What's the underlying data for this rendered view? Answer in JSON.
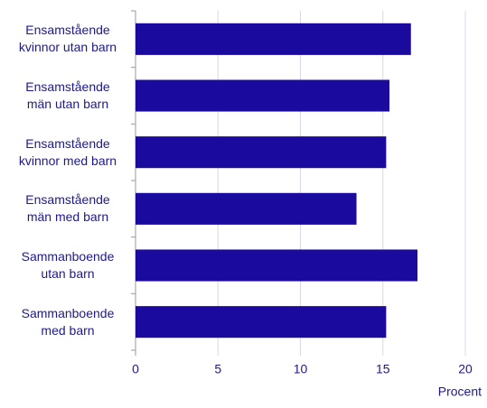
{
  "chart_data": {
    "type": "bar",
    "orientation": "horizontal",
    "categories": [
      "Ensamstående\nkvinnor utan barn",
      "Ensamstående\nmän utan barn",
      "Ensamstående\nkvinnor med barn",
      "Ensamstående\nmän med barn",
      "Sammanboende\nutan barn",
      "Sammanboende\nmed barn"
    ],
    "values": [
      16.7,
      15.4,
      15.2,
      13.4,
      17.1,
      15.2
    ],
    "color": "#1a0a9e",
    "xlabel": "Procent",
    "xlim": [
      0,
      20
    ],
    "xticks": [
      0,
      5,
      10,
      15,
      20
    ],
    "grid": true
  }
}
